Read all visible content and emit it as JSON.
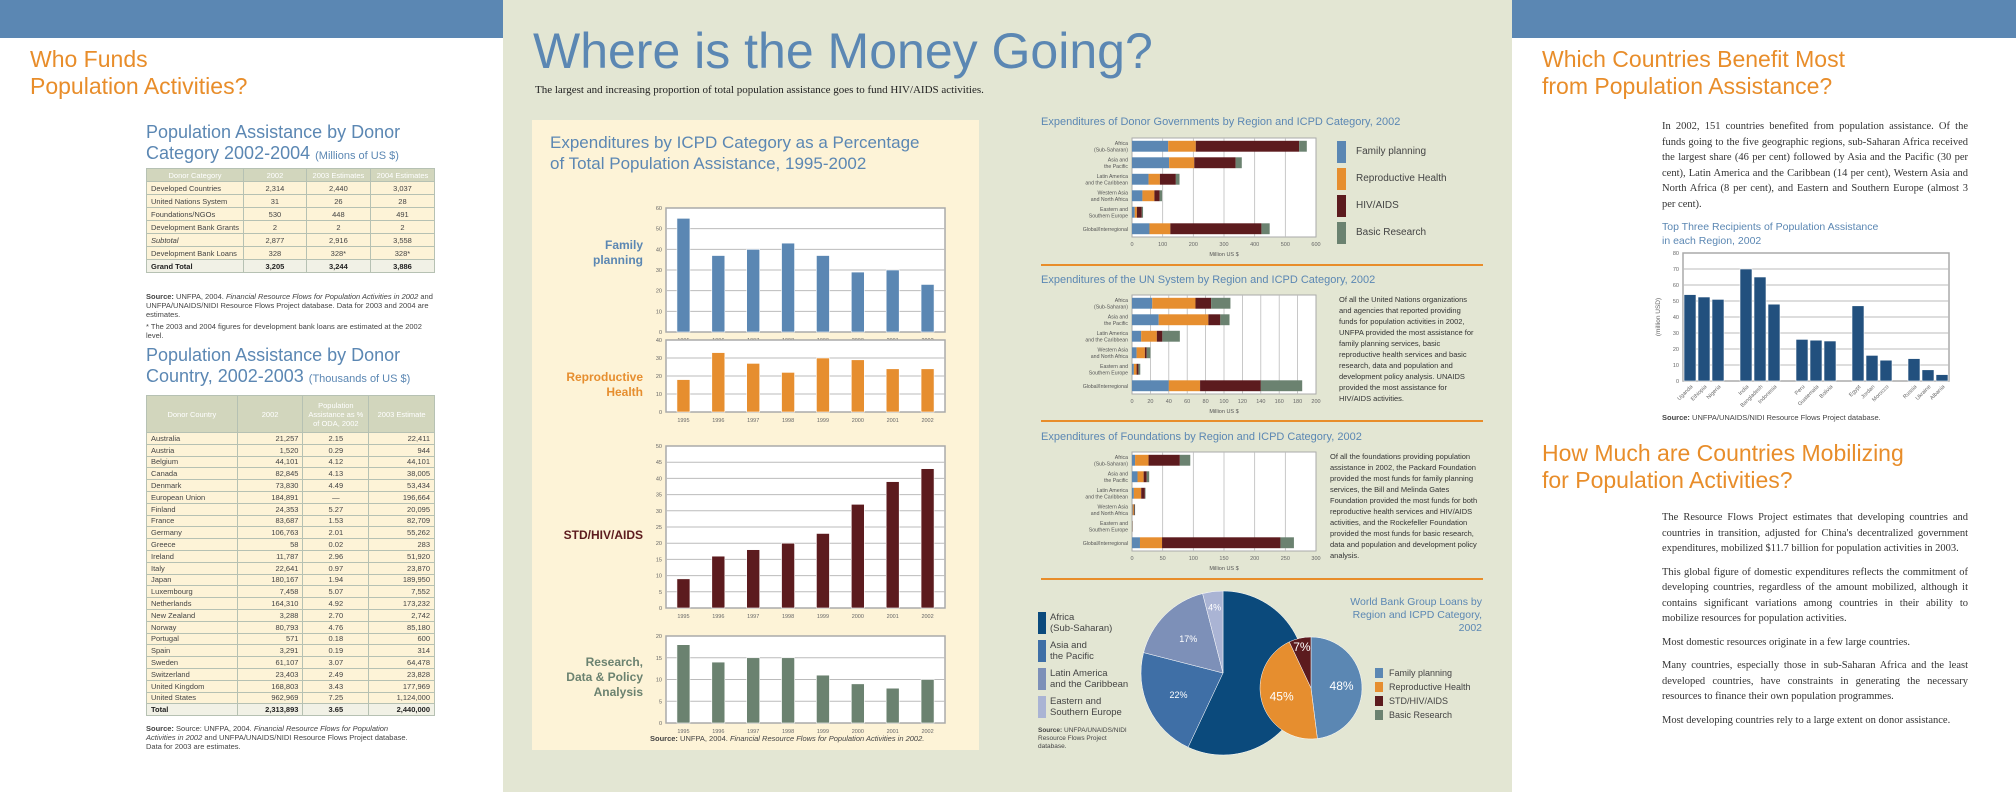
{
  "left": {
    "title_line1": "Who Funds",
    "title_line2": "Population Activities?",
    "table1": {
      "title": "Population Assistance by Donor Category 2002-2004",
      "unit": "(Millions of US $)",
      "headers": [
        "Donor Category",
        "2002",
        "2003 Estimates",
        "2004 Estimates"
      ],
      "rows": [
        [
          "Developed Countries",
          "2,314",
          "2,440",
          "3,037"
        ],
        [
          "United Nations System",
          "31",
          "26",
          "28"
        ],
        [
          "Foundations/NGOs",
          "530",
          "448",
          "491"
        ],
        [
          "Development Bank Grants",
          "2",
          "2",
          "2"
        ],
        [
          "Subtotal",
          "2,877",
          "2,916",
          "3,558"
        ],
        [
          "Development Bank Loans",
          "328",
          "328*",
          "328*"
        ],
        [
          "Grand Total",
          "3,205",
          "3,244",
          "3,886"
        ]
      ],
      "source_label": "Source:",
      "source_text": "UNFPA, 2004.",
      "source_italic": "Financial Resource Flows for Population Activities in 2002",
      "source_rest": "and UNFPA/UNAIDS/NIDI Resource Flows Project database. Data for 2003 and 2004 are estimates.",
      "footnote": "* The 2003 and 2004 figures for development bank loans are estimated at the 2002 level."
    },
    "table2": {
      "title": "Population Assistance by Donor Country, 2002-2003",
      "unit": "(Thousands of US $)",
      "headers": [
        "Donor Country",
        "2002",
        "Population Assistance as % of ODA, 2002",
        "2003 Estimate"
      ],
      "rows": [
        [
          "Australia",
          "21,257",
          "2.15",
          "22,411"
        ],
        [
          "Austria",
          "1,520",
          "0.29",
          "944"
        ],
        [
          "Belgium",
          "44,101",
          "4.12",
          "44,101"
        ],
        [
          "Canada",
          "82,845",
          "4.13",
          "38,005"
        ],
        [
          "Denmark",
          "73,830",
          "4.49",
          "53,434"
        ],
        [
          "European Union",
          "184,891",
          "—",
          "196,664"
        ],
        [
          "Finland",
          "24,353",
          "5.27",
          "20,095"
        ],
        [
          "France",
          "83,687",
          "1.53",
          "82,709"
        ],
        [
          "Germany",
          "106,763",
          "2.01",
          "55,262"
        ],
        [
          "Greece",
          "58",
          "0.02",
          "283"
        ],
        [
          "Ireland",
          "11,787",
          "2.96",
          "51,920"
        ],
        [
          "Italy",
          "22,641",
          "0.97",
          "23,870"
        ],
        [
          "Japan",
          "180,167",
          "1.94",
          "189,950"
        ],
        [
          "Luxembourg",
          "7,458",
          "5.07",
          "7,552"
        ],
        [
          "Netherlands",
          "164,310",
          "4.92",
          "173,232"
        ],
        [
          "New Zealand",
          "3,288",
          "2.70",
          "2,742"
        ],
        [
          "Norway",
          "80,793",
          "4.76",
          "85,180"
        ],
        [
          "Portugal",
          "571",
          "0.18",
          "600"
        ],
        [
          "Spain",
          "3,291",
          "0.19",
          "314"
        ],
        [
          "Sweden",
          "61,107",
          "3.07",
          "64,478"
        ],
        [
          "Switzerland",
          "23,403",
          "2.49",
          "23,828"
        ],
        [
          "United Kingdom",
          "168,803",
          "3.43",
          "177,969"
        ],
        [
          "United States",
          "962,969",
          "7.25",
          "1,124,000"
        ],
        [
          "Total",
          "2,313,893",
          "3.65",
          "2,440,000"
        ]
      ],
      "source_label": "Source:",
      "source_text": "Source: UNFPA, 2004.",
      "source_italic": "Financial Resource Flows for Population Activities in 2002",
      "source_rest": "and UNFPA/UNAIDS/NIDI Resource Flows Project database. Data for 2003 are estimates."
    }
  },
  "middle": {
    "title": "Where is the Money Going?",
    "subtitle": "The largest and increasing proportion of total population assistance goes to fund HIV/AIDS activities.",
    "icpd_title_line1": "Expenditures by ICPD Category as a Percentage",
    "icpd_title_line2": "of Total Population Assistance, 1995-2002",
    "icpd_source_label": "Source:",
    "icpd_source_text": "UNFPA, 2004.",
    "icpd_source_italic": "Financial Resource Flows for Population Activities in 2002.",
    "un_text": "Of all the United Nations organizations and agencies that reported providing funds for population activities in 2002, UNFPA provided the most assistance for family planning services, basic reproductive health services and basic research, data and population and development policy analysis. UNAIDS provided the most assistance for HIV/AIDS activities.",
    "foundations_text": "Of all the foundations providing population assistance in 2002, the Packard Foundation provided the most funds for family planning services, the Bill and Melinda Gates Foundation provided the most funds for both reproductive health services and HIV/AIDS activities, and the Rockefeller Foundation provided the most funds for basic research, data and population and development policy analysis.",
    "legend": [
      {
        "label": "Family planning",
        "color": "#5b87b3"
      },
      {
        "label": "Reproductive Health",
        "color": "#e68e2f"
      },
      {
        "label": "HIV/AIDS",
        "color": "#5c1b1e"
      },
      {
        "label": "Basic Research",
        "color": "#6b8270"
      }
    ],
    "pie_source_label": "Source:",
    "pie_source_text": "UNFPA/UNAIDS/NIDI Resource Flows Project database."
  },
  "right": {
    "title1_line1": "Which Countries Benefit Most",
    "title1_line2": "from Population Assistance?",
    "para1": "In 2002, 151 countries benefited from population assistance. Of the funds going to the five geographic regions, sub-Saharan Africa received the largest share (46 per cent) followed by Asia and the Pacific (30 per cent), Latin America and the Caribbean (14 per cent), Western Asia and North Africa (8 per cent), and Eastern and Southern Europe (almost 3 per cent).",
    "chart_title_line1": "Top Three Recipients of Population Assistance",
    "chart_title_line2": "in each Region, 2002",
    "chart_source_label": "Source:",
    "chart_source_text": "UNFPA/UNAIDS/NIDI Resource Flows Project database.",
    "title2_line1": "How Much are Countries Mobilizing",
    "title2_line2": "for Population Activities?",
    "paras": [
      "The Resource Flows Project estimates that developing countries and countries in transition, adjusted for China's decentralized government expenditures, mobilized $11.7 billion for population activities in 2003.",
      "This global figure of domestic expenditures reflects the commitment of developing countries, regardless of the amount mobilized, although it contains significant variations among countries in their ability to mobilize resources for population activities.",
      "Most domestic resources originate in a few large countries.",
      "Many countries, especially those in sub-Saharan Africa and the least developed countries, have constraints in generating the necessary resources to finance their own population programmes.",
      "Most developing countries rely to a large extent on donor assistance."
    ]
  },
  "colors": {
    "blue": "#5b87b3",
    "orange": "#e88d2a",
    "panel": "#e3e6d3",
    "cream": "#fdf3d7"
  },
  "chart_data": [
    {
      "id": "fp",
      "type": "bar",
      "category_label": "Family planning",
      "color": "#5b87b3",
      "categories": [
        "1995",
        "1996",
        "1997",
        "1998",
        "1999",
        "2000",
        "2001",
        "2002"
      ],
      "values": [
        55,
        37,
        40,
        43,
        37,
        29,
        30,
        23
      ],
      "ylim": [
        0,
        60
      ],
      "yticks": [
        "0",
        "10",
        "20",
        "30",
        "40",
        "50",
        "60"
      ],
      "grid": true
    },
    {
      "id": "rh",
      "type": "bar",
      "category_label": "Reproductive Health",
      "color": "#e68e2f",
      "categories": [
        "1995",
        "1996",
        "1997",
        "1998",
        "1999",
        "2000",
        "2001",
        "2002"
      ],
      "values": [
        18,
        33,
        27,
        22,
        30,
        29,
        24,
        24
      ],
      "ylim": [
        0,
        40
      ],
      "yticks": [
        "0",
        "10",
        "20",
        "30",
        "40"
      ],
      "grid": true
    },
    {
      "id": "hiv",
      "type": "bar",
      "category_label": "STD/HIV/AIDS",
      "color": "#5c1b1e",
      "categories": [
        "1995",
        "1996",
        "1997",
        "1998",
        "1999",
        "2000",
        "2001",
        "2002"
      ],
      "values": [
        9,
        16,
        18,
        20,
        23,
        32,
        39,
        43
      ],
      "ylim": [
        0,
        50
      ],
      "yticks": [
        "0",
        "5",
        "10",
        "15",
        "20",
        "25",
        "30",
        "35",
        "40",
        "45",
        "50"
      ],
      "grid": true
    },
    {
      "id": "res",
      "type": "bar",
      "category_label": "Research, Data & Policy Analysis",
      "color": "#6b8270",
      "categories": [
        "1995",
        "1996",
        "1997",
        "1998",
        "1999",
        "2000",
        "2001",
        "2002"
      ],
      "values": [
        18,
        14,
        15,
        15,
        11,
        9,
        8,
        10
      ],
      "ylim": [
        0,
        20
      ],
      "yticks": [
        "0",
        "5",
        "10",
        "15",
        "20"
      ],
      "grid": true
    },
    {
      "id": "donor",
      "type": "bar",
      "orientation": "horizontal-stacked",
      "title": "Expenditures of Donor Governments by Region and ICPD Category, 2002",
      "xlabel": "Million US $",
      "xlim": [
        0,
        600
      ],
      "xticks": [
        "0",
        "100",
        "200",
        "300",
        "400",
        "500",
        "600"
      ],
      "categories": [
        [
          "Africa",
          "(Sub-Saharan)"
        ],
        [
          "Asia and",
          "the Pacific"
        ],
        [
          "Latin America",
          "and the Caribbean"
        ],
        [
          "Western Asia",
          "and North Africa"
        ],
        [
          "Eastern and",
          "Southern Europe"
        ],
        [
          "Global/Interregional"
        ]
      ],
      "series": [
        {
          "name": "Family planning",
          "values": [
            118,
            121,
            54,
            34,
            9,
            57
          ]
        },
        {
          "name": "Reproductive Health",
          "values": [
            90,
            82,
            37,
            39,
            7,
            68
          ]
        },
        {
          "name": "HIV/AIDS",
          "values": [
            337,
            135,
            52,
            17,
            16,
            297
          ]
        },
        {
          "name": "Basic Research",
          "values": [
            25,
            20,
            12,
            8,
            4,
            27
          ]
        }
      ]
    },
    {
      "id": "un",
      "type": "bar",
      "orientation": "horizontal-stacked",
      "title": "Expenditures of the UN System by Region and ICPD Category, 2002",
      "xlabel": "Million US $",
      "xlim": [
        0,
        200
      ],
      "xticks": [
        "0",
        "20",
        "40",
        "60",
        "80",
        "100",
        "120",
        "140",
        "160",
        "180",
        "200"
      ],
      "categories": [
        [
          "Africa",
          "(Sub-Saharan)"
        ],
        [
          "Asia and",
          "the Pacific"
        ],
        [
          "Latin America",
          "and the Caribbean"
        ],
        [
          "Western Asia",
          "and North Africa"
        ],
        [
          "Eastern and",
          "Southern Europe"
        ],
        [
          "Global/Interregional"
        ]
      ],
      "series": [
        {
          "name": "Family planning",
          "values": [
            22,
            29,
            10,
            5,
            2,
            40
          ]
        },
        {
          "name": "Reproductive Health",
          "values": [
            47,
            54,
            17,
            9,
            3,
            34
          ]
        },
        {
          "name": "HIV/AIDS",
          "values": [
            17,
            13,
            6,
            2,
            2,
            66
          ]
        },
        {
          "name": "Basic Research",
          "values": [
            21,
            10,
            19,
            4,
            2,
            45
          ]
        }
      ]
    },
    {
      "id": "found",
      "type": "bar",
      "orientation": "horizontal-stacked",
      "title": "Expenditures of Foundations by Region and ICPD Category, 2002",
      "xlabel": "Million US $",
      "xlim": [
        0,
        300
      ],
      "xticks": [
        "0",
        "50",
        "100",
        "150",
        "200",
        "250",
        "300"
      ],
      "categories": [
        [
          "Africa",
          "(Sub-Saharan)"
        ],
        [
          "Asia and",
          "the Pacific"
        ],
        [
          "Latin America",
          "and the Caribbean"
        ],
        [
          "Western Asia",
          "and North Africa"
        ],
        [
          "Eastern and",
          "Southern Europe"
        ],
        [
          "Global/Interregional"
        ]
      ],
      "series": [
        {
          "name": "Family planning",
          "values": [
            5,
            9,
            3,
            1,
            0.5,
            13
          ]
        },
        {
          "name": "Reproductive Health",
          "values": [
            22,
            10,
            12,
            2,
            0.3,
            36
          ]
        },
        {
          "name": "HIV/AIDS",
          "values": [
            51,
            5,
            6,
            1,
            0.2,
            193
          ]
        },
        {
          "name": "Basic Research",
          "values": [
            17,
            4,
            1,
            1,
            0.2,
            22
          ]
        }
      ]
    },
    {
      "id": "wb_region",
      "type": "pie",
      "title": "World Bank Group Loans by Region and ICPD Category, 2002",
      "labels": [
        "Africa (Sub-Saharan)",
        "Asia and the Pacific",
        "Latin America and the Caribbean",
        "Eastern and Southern Europe"
      ],
      "legend_lines": [
        [
          "Africa",
          "(Sub-Saharan)"
        ],
        [
          "Asia and",
          "the Pacific"
        ],
        [
          "Latin America",
          "and the Caribbean"
        ],
        [
          "Eastern and",
          "Southern Europe"
        ]
      ],
      "values": [
        57,
        22,
        17,
        4
      ],
      "value_labels": [
        "57%",
        "22%",
        "17%",
        "4%"
      ],
      "colors": [
        "#0b4a7c",
        "#3f6fa6",
        "#7d90b8",
        "#aab4d4"
      ]
    },
    {
      "id": "wb_category",
      "type": "pie",
      "labels": [
        "Family planning",
        "Reproductive Health",
        "STD/HIV/AIDS",
        "Basic Research"
      ],
      "values": [
        48,
        45,
        7,
        0
      ],
      "value_labels": [
        "48%",
        "45%",
        "7%",
        ""
      ],
      "colors": [
        "#5b87b3",
        "#e68e2f",
        "#5c1b1e",
        "#6b8270"
      ]
    },
    {
      "id": "recipients",
      "type": "bar",
      "ylabel": "(million USD)",
      "ylim": [
        0,
        80
      ],
      "yticks": [
        "0",
        "10",
        "20",
        "30",
        "40",
        "50",
        "60",
        "70",
        "80"
      ],
      "grid": true,
      "color": "#22507e",
      "categories": [
        "Uganda",
        "Ethiopia",
        "Nigeria",
        "India",
        "Bangladesh",
        "Indonesia",
        "Peru",
        "Guatemala",
        "Bolivia",
        "Egypt",
        "Jordan",
        "Morocco",
        "Russia",
        "Ukraine",
        "Albania"
      ],
      "values": [
        54,
        52.5,
        51,
        70,
        65,
        48,
        26,
        25.5,
        25,
        47,
        16,
        13,
        14,
        7,
        4
      ]
    }
  ]
}
